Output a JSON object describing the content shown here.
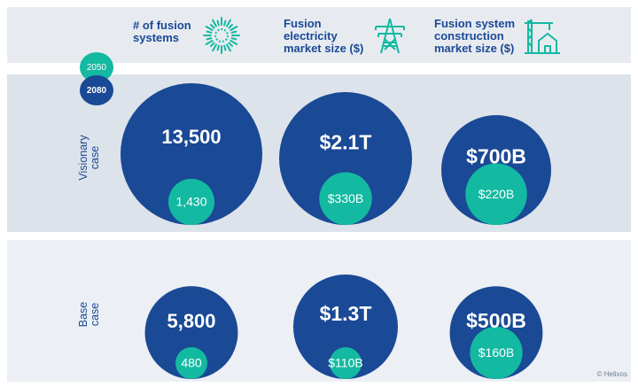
{
  "header": {
    "columns": [
      {
        "label_line1": "# of fusion",
        "label_line2": "systems",
        "label_line3": "",
        "icon": "fusion-burst-icon"
      },
      {
        "label_line1": "Fusion",
        "label_line2": "electricity",
        "label_line3": "market size ($)",
        "icon": "power-tower-icon"
      },
      {
        "label_line1": "Fusion system",
        "label_line2": "construction",
        "label_line3": "market size ($)",
        "icon": "crane-building-icon"
      }
    ]
  },
  "legend": {
    "year_a": "2050",
    "year_b": "2080"
  },
  "rows": [
    {
      "label_line1": "Visionary",
      "label_line2": "case"
    },
    {
      "label_line1": "Base",
      "label_line2": "case"
    }
  ],
  "credit": "© Helixos",
  "colors": {
    "navy": "#1a4996",
    "teal": "#13b9a1",
    "header_band": "#e7ebf0",
    "visionary_band": "#dde3ea",
    "base_band": "#eceff3"
  },
  "chart_data": {
    "type": "bubble",
    "categories": [
      "# of fusion systems",
      "Fusion electricity market size ($)",
      "Fusion system construction market size ($)"
    ],
    "series": [
      {
        "name": "2080",
        "color": "#1a4996"
      },
      {
        "name": "2050",
        "color": "#13b9a1"
      }
    ],
    "groups": [
      {
        "name": "Visionary case",
        "points": [
          {
            "category": "# of fusion systems",
            "v2080": 13500,
            "label2080": "13,500",
            "v2050": 1430,
            "label2050": "1,430"
          },
          {
            "category": "Fusion electricity market size ($)",
            "v2080": 2100,
            "label2080": "$2.1T",
            "v2050": 330,
            "label2050": "$330B"
          },
          {
            "category": "Fusion system construction market size ($)",
            "v2080": 700,
            "label2080": "$700B",
            "v2050": 220,
            "label2050": "$220B"
          }
        ]
      },
      {
        "name": "Base case",
        "points": [
          {
            "category": "# of fusion systems",
            "v2080": 5800,
            "label2080": "5,800",
            "v2050": 480,
            "label2050": "480"
          },
          {
            "category": "Fusion electricity market size ($)",
            "v2080": 1300,
            "label2080": "$1.3T",
            "v2050": 110,
            "label2050": "$110B"
          },
          {
            "category": "Fusion system construction market size ($)",
            "v2080": 500,
            "label2080": "$500B",
            "v2050": 160,
            "label2050": "$160B"
          }
        ]
      }
    ]
  }
}
